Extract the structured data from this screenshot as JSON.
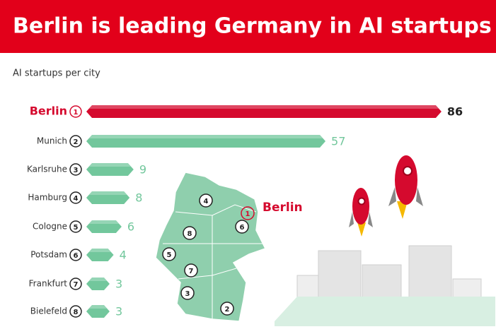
{
  "chart_data": {
    "type": "bar",
    "title": "Berlin is leading Germany in AI startups",
    "subtitle": "AI startups per city",
    "categories": [
      "Berlin",
      "Munich",
      "Karlsruhe",
      "Hamburg",
      "Cologne",
      "Potsdam",
      "Frankfurt",
      "Bielefeld"
    ],
    "ranks": [
      1,
      2,
      3,
      4,
      5,
      6,
      7,
      8
    ],
    "values": [
      86,
      57,
      9,
      8,
      6,
      4,
      3,
      3
    ],
    "color": "#72c79c",
    "highlight_color": "#d50a2e"
  }
}
